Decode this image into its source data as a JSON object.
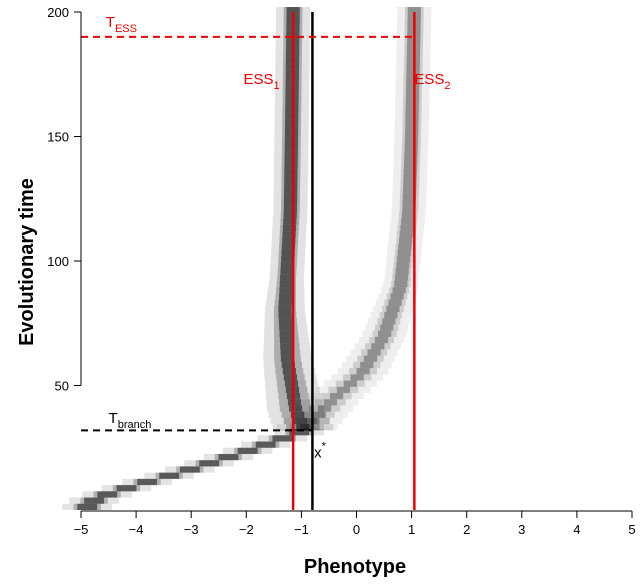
{
  "chart_data": {
    "type": "heatmap",
    "title": "",
    "xlabel": "Phenotype",
    "ylabel": "Evolutionary time",
    "xlim": [
      -5,
      5
    ],
    "ylim": [
      0,
      200
    ],
    "xticks": [
      -5,
      -4,
      -3,
      -2,
      -1,
      0,
      1,
      2,
      3,
      4,
      5
    ],
    "xtick_labels": [
      "−5",
      "−4",
      "−3",
      "−2",
      "−1",
      "0",
      "1",
      "2",
      "3",
      "4",
      "5"
    ],
    "yticks": [
      50,
      100,
      150,
      200
    ],
    "ytick_labels": [
      "50",
      "100",
      "150",
      "200"
    ],
    "grid": false,
    "colors": {
      "density": "#000000",
      "highlight": "#ee0000",
      "reference": "#000000"
    },
    "lines": [
      {
        "name": "ess1",
        "orientation": "vertical",
        "x": -1.15,
        "color": "#ee0000",
        "style": "solid"
      },
      {
        "name": "ess2",
        "orientation": "vertical",
        "x": 1.05,
        "color": "#ee0000",
        "style": "solid"
      },
      {
        "name": "x_star",
        "orientation": "vertical",
        "x": -0.8,
        "color": "#000000",
        "style": "solid"
      },
      {
        "name": "t_ess",
        "orientation": "horizontal",
        "y": 190,
        "x_range": [
          -5,
          1.05
        ],
        "color": "#ee0000",
        "style": "dashed"
      },
      {
        "name": "t_branch",
        "orientation": "horizontal",
        "y": 32,
        "x_range": [
          -5,
          -0.8
        ],
        "color": "#000000",
        "style": "dashed"
      }
    ],
    "annotations": [
      {
        "id": "t_ess",
        "text": "T",
        "sub": "ESS",
        "sup": "",
        "x": -4.55,
        "y": 194,
        "color": "#ee0000"
      },
      {
        "id": "ess1",
        "text": "ESS",
        "sub": "1",
        "sup": "",
        "x": -2.05,
        "y": 171,
        "color": "#ee0000"
      },
      {
        "id": "ess2",
        "text": "ESS",
        "sub": "2",
        "sup": "",
        "x": 1.05,
        "y": 171,
        "color": "#ee0000"
      },
      {
        "id": "t_branch",
        "text": "T",
        "sub": "branch",
        "sup": "",
        "x": -4.5,
        "y": 35,
        "color": "#000000"
      },
      {
        "id": "x_star",
        "text": "x",
        "sub": "",
        "sup": "*",
        "x": -0.77,
        "y": 21,
        "color": "#000000"
      }
    ],
    "branches": [
      {
        "name": "trunk",
        "t_range": [
          0,
          32
        ],
        "x_at_t": {
          "0": -4.95,
          "5": -4.7,
          "10": -4.0,
          "15": -3.2,
          "20": -2.5,
          "25": -1.8,
          "32": -0.95
        },
        "peak_density": 0.9
      },
      {
        "name": "branch_low",
        "t_range": [
          32,
          200
        ],
        "x_at_t": {
          "32": -0.95,
          "40": -1.1,
          "60": -1.25,
          "80": -1.3,
          "100": -1.25,
          "120": -1.2,
          "150": -1.18,
          "200": -1.15
        },
        "peak_density": 0.95
      },
      {
        "name": "branch_high",
        "t_range": [
          32,
          200
        ],
        "x_at_t": {
          "32": -0.95,
          "45": -0.4,
          "55": 0.1,
          "70": 0.5,
          "90": 0.8,
          "120": 0.95,
          "150": 1.0,
          "200": 1.05
        },
        "peak_density": 0.55
      }
    ]
  }
}
